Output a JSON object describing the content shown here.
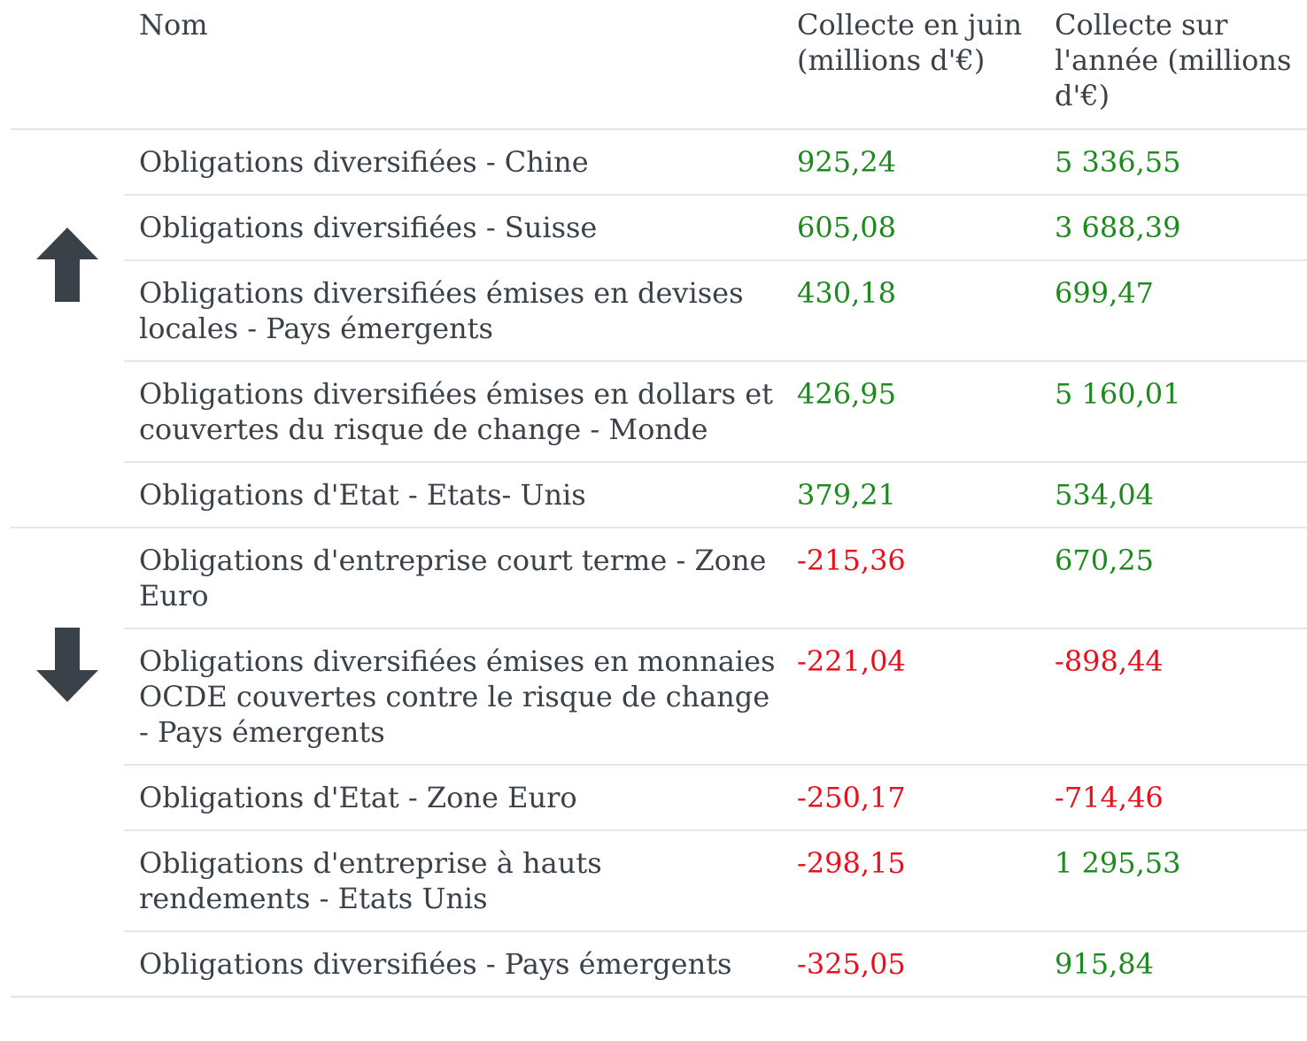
{
  "headers": {
    "name": "Nom",
    "june": "Collecte en juin (millions d'€)",
    "year": "Collecte sur l'année (millions d'€)"
  },
  "colors": {
    "positive": "#1c8a1c",
    "negative": "#e8101c",
    "text": "#3b4148",
    "divider": "#e6e6e6"
  },
  "groups": [
    {
      "icon": "arrow-up-icon",
      "rows": [
        {
          "name": "Obligations diversifiées - Chine",
          "june": "925,24",
          "year": "5 336,55",
          "june_sign": "pos",
          "year_sign": "pos"
        },
        {
          "name": "Obligations diversifiées - Suisse",
          "june": "605,08",
          "year": "3 688,39",
          "june_sign": "pos",
          "year_sign": "pos"
        },
        {
          "name": "Obligations diversifiées émises en devises locales - Pays émergents",
          "june": "430,18",
          "year": "699,47",
          "june_sign": "pos",
          "year_sign": "pos"
        },
        {
          "name": "Obligations diversifiées émises en dollars et couvertes du risque de change - Monde",
          "june": "426,95",
          "year": "5 160,01",
          "june_sign": "pos",
          "year_sign": "pos"
        },
        {
          "name": "Obligations d'Etat - Etats- Unis",
          "june": "379,21",
          "year": "534,04",
          "june_sign": "pos",
          "year_sign": "pos"
        }
      ]
    },
    {
      "icon": "arrow-down-icon",
      "rows": [
        {
          "name": "Obligations d'entreprise court terme - Zone Euro",
          "june": "-215,36",
          "year": "670,25",
          "june_sign": "neg",
          "year_sign": "pos"
        },
        {
          "name": "Obligations diversifiées émises en monnaies OCDE couvertes contre le risque de change - Pays émergents",
          "june": "-221,04",
          "year": "-898,44",
          "june_sign": "neg",
          "year_sign": "neg"
        },
        {
          "name": "Obligations d'Etat - Zone Euro",
          "june": "-250,17",
          "year": "-714,46",
          "june_sign": "neg",
          "year_sign": "neg"
        },
        {
          "name": "Obligations d'entreprise à hauts rendements - Etats Unis",
          "june": "-298,15",
          "year": "1 295,53",
          "june_sign": "neg",
          "year_sign": "pos"
        },
        {
          "name": "Obligations diversifiées - Pays émergents",
          "june": "-325,05",
          "year": "915,84",
          "june_sign": "neg",
          "year_sign": "pos"
        }
      ]
    }
  ]
}
